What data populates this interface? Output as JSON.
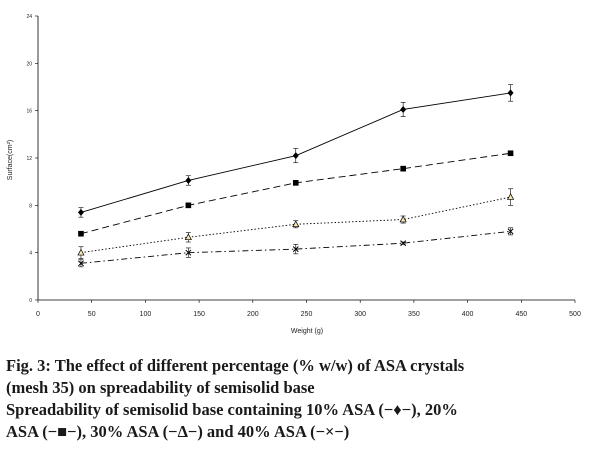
{
  "chart_data": {
    "type": "line",
    "xlabel": "Weight (g)",
    "ylabel": "Surface(cm²)",
    "xlim": [
      0,
      500
    ],
    "ylim": [
      0,
      24
    ],
    "xticks": [
      "0",
      "50",
      "100",
      "150",
      "200",
      "250",
      "300",
      "350",
      "400",
      "450",
      "500"
    ],
    "yticks": [
      "0",
      "4",
      "8",
      "12",
      "16",
      "20",
      "24"
    ],
    "grid": false,
    "legend": "none",
    "x": [
      40,
      140,
      240,
      340,
      440
    ],
    "series": [
      {
        "marker": "diamond",
        "dash": "solid",
        "color": "#000000",
        "values": [
          7.4,
          10.1,
          12.2,
          16.1,
          17.5
        ],
        "errors": [
          0.4,
          0.4,
          0.6,
          0.6,
          0.7
        ]
      },
      {
        "marker": "square",
        "dash": "long-dash",
        "color": "#000000",
        "values": [
          5.6,
          8.0,
          9.9,
          11.1,
          12.4
        ],
        "errors": [
          0.2,
          0.2,
          0.2,
          0.2,
          0.2
        ]
      },
      {
        "marker": "triangle",
        "dash": "dotted",
        "color": "#000000",
        "values": [
          4.0,
          5.3,
          6.4,
          6.8,
          8.7
        ],
        "errors": [
          0.5,
          0.4,
          0.3,
          0.3,
          0.7
        ]
      },
      {
        "marker": "cross",
        "dash": "dash-dot",
        "color": "#000000",
        "values": [
          3.1,
          4.0,
          4.3,
          4.8,
          5.8
        ],
        "errors": [
          0.3,
          0.4,
          0.4,
          0.1,
          0.3
        ]
      }
    ]
  },
  "caption": {
    "line1": "Fig. 3: The effect of different percentage (% w/w) of ASA crystals",
    "line2": "(mesh 35) on spreadability of semisolid base",
    "line3": "Spreadability of semisolid base containing 10% ASA (−♦−), 20%",
    "line4": "ASA (−■−), 30% ASA (−Δ−) and 40% ASA (−×−)"
  }
}
